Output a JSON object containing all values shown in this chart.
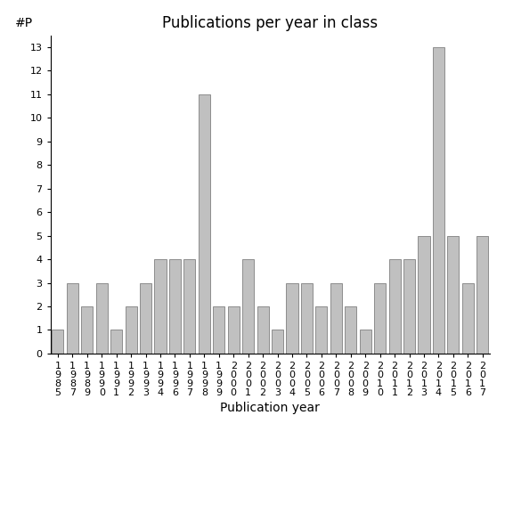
{
  "title": "Publications per year in class",
  "xlabel": "Publication year",
  "ylabel": "#P",
  "bar_color": "#c0c0c0",
  "bar_edgecolor": "#808080",
  "years": [
    "1985",
    "1987",
    "1989",
    "1990",
    "1991",
    "1992",
    "1993",
    "1994",
    "1996",
    "1997",
    "1998",
    "1999",
    "2000",
    "2001",
    "2002",
    "2003",
    "2004",
    "2005",
    "2006",
    "2007",
    "2008",
    "2009",
    "2010",
    "2011",
    "2012",
    "2013",
    "2014",
    "2015",
    "2016",
    "2017"
  ],
  "values": [
    1,
    3,
    2,
    3,
    1,
    2,
    3,
    4,
    4,
    4,
    11,
    2,
    2,
    4,
    2,
    1,
    3,
    3,
    2,
    3,
    2,
    1,
    3,
    4,
    4,
    5,
    13,
    5,
    3,
    5
  ],
  "yticks": [
    0,
    1,
    2,
    3,
    4,
    5,
    6,
    7,
    8,
    9,
    10,
    11,
    12,
    13
  ],
  "ylim": [
    0,
    13.5
  ],
  "background_color": "#ffffff",
  "title_fontsize": 12,
  "axis_label_fontsize": 10,
  "tick_fontsize": 8
}
